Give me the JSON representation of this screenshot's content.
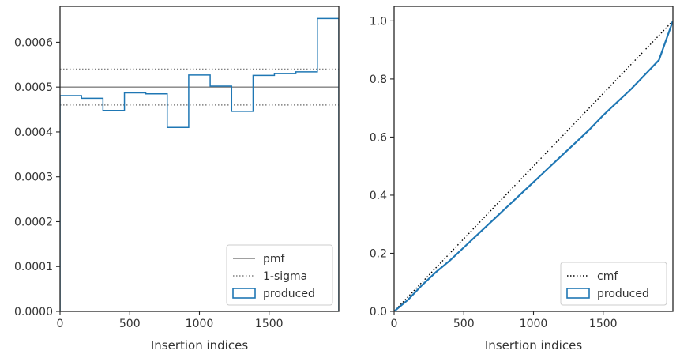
{
  "chart_data": [
    {
      "type": "step",
      "xlabel": "Insertion indices",
      "xlim": [
        0,
        2000
      ],
      "ylim": [
        0,
        0.00068
      ],
      "x_ticks": [
        0,
        500,
        1000,
        1500
      ],
      "y_ticks": [
        0.0,
        0.0001,
        0.0002,
        0.0003,
        0.0004,
        0.0005,
        0.0006
      ],
      "x_tick_labels": [
        "0",
        "500",
        "1000",
        "1500"
      ],
      "y_tick_labels": [
        "0.0000",
        "0.0001",
        "0.0002",
        "0.0003",
        "0.0004",
        "0.0005",
        "0.0006"
      ],
      "grid": false,
      "legend_position": "lower right",
      "lines": [
        {
          "name": "pmf",
          "value": 0.0005,
          "style": "solid",
          "color": "#808080"
        },
        {
          "name": "1-sigma",
          "value": 0.00054,
          "style": "dotted",
          "color": "#808080"
        },
        {
          "name": "1-sigma",
          "value": 0.00046,
          "style": "dotted",
          "color": "#808080",
          "in_legend": false
        }
      ],
      "series": [
        {
          "name": "produced",
          "color": "#1f77b4",
          "bin_edges": [
            0,
            154,
            308,
            462,
            615,
            769,
            923,
            1077,
            1231,
            1385,
            1538,
            1692,
            1846,
            2000
          ],
          "values": [
            0.000481,
            0.000475,
            0.000448,
            0.000487,
            0.000485,
            0.00041,
            0.000527,
            0.000502,
            0.000446,
            0.000526,
            0.00053,
            0.000534,
            0.000653
          ]
        }
      ]
    },
    {
      "type": "line",
      "xlabel": "Insertion indices",
      "xlim": [
        0,
        2000
      ],
      "ylim": [
        0,
        1.05
      ],
      "x_ticks": [
        0,
        500,
        1000,
        1500
      ],
      "y_ticks": [
        0.0,
        0.2,
        0.4,
        0.6,
        0.8,
        1.0
      ],
      "x_tick_labels": [
        "0",
        "500",
        "1000",
        "1500"
      ],
      "y_tick_labels": [
        "0.0",
        "0.2",
        "0.4",
        "0.6",
        "0.8",
        "1.0"
      ],
      "grid": false,
      "legend_position": "lower right",
      "series": [
        {
          "name": "cmf",
          "style": "dotted",
          "color": "#000000",
          "x": [
            0,
            2000
          ],
          "y": [
            0,
            1.0
          ]
        },
        {
          "name": "produced",
          "color": "#1f77b4",
          "x": [
            0,
            100,
            200,
            300,
            400,
            500,
            600,
            700,
            800,
            900,
            1000,
            1100,
            1200,
            1300,
            1400,
            1500,
            1600,
            1700,
            1800,
            1900,
            2000
          ],
          "y": [
            0,
            0.04,
            0.09,
            0.135,
            0.175,
            0.22,
            0.265,
            0.31,
            0.355,
            0.4,
            0.445,
            0.49,
            0.535,
            0.58,
            0.625,
            0.675,
            0.72,
            0.765,
            0.815,
            0.865,
            1.0
          ]
        }
      ]
    }
  ]
}
